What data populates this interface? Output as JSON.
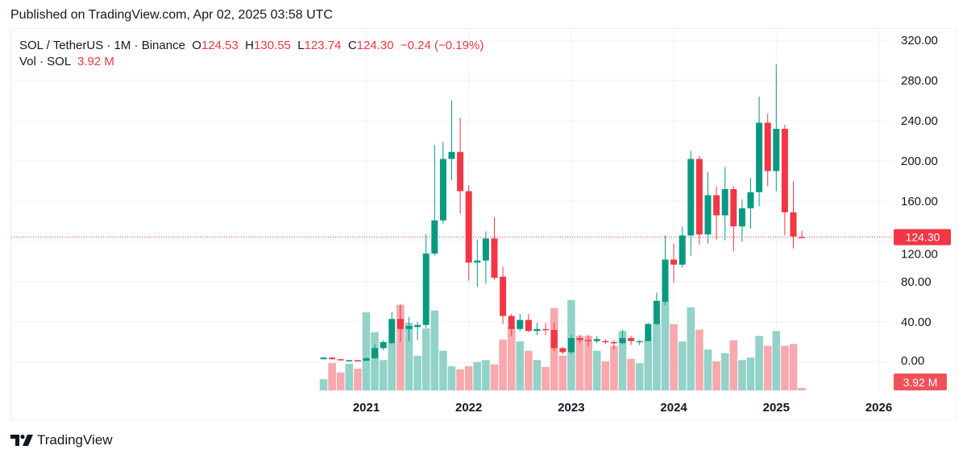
{
  "published": "Published on TradingView.com, Apr 02, 2025 03:58 UTC",
  "legend": {
    "symbol": "SOL / TetherUS · 1M · Binance",
    "o_label": "O",
    "o": "124.53",
    "h_label": "H",
    "h": "130.55",
    "l_label": "L",
    "l": "123.74",
    "c_label": "C",
    "c": "124.30",
    "change": "−0.24 (−0.19%)",
    "vol_label": "Vol · SOL",
    "vol": "3.92 M"
  },
  "price_label": "124.30",
  "volume_label": "3.92 M",
  "logo_text": "TradingView",
  "colors": {
    "up": "#089981",
    "down": "#f23645",
    "up_vol": "#92d2c8",
    "down_vol": "#f7a9ae",
    "grid": "#f0f2f5"
  },
  "chart_data": {
    "type": "candlestick",
    "title": "SOL / TetherUS · 1M · Binance",
    "interval": "1M",
    "start_month": "2020-08",
    "ylim": [
      0,
      320
    ],
    "yticks": [
      "0.00",
      "40.00",
      "80.00",
      "120.00",
      "160.00",
      "200.00",
      "240.00",
      "280.00",
      "320.00"
    ],
    "ytick_values": [
      0,
      40,
      80,
      120,
      160,
      200,
      240,
      280,
      320
    ],
    "xticks": [
      {
        "label": "2021",
        "index": 5
      },
      {
        "label": "2022",
        "index": 17
      },
      {
        "label": "2023",
        "index": 29
      },
      {
        "label": "2024",
        "index": 41
      },
      {
        "label": "2025",
        "index": 53
      },
      {
        "label": "2026",
        "index": 65
      }
    ],
    "grid": true,
    "last_price": 124.3,
    "ohlcv": [
      [
        3,
        5,
        2.9,
        4.6,
        18
      ],
      [
        4.6,
        5,
        2.6,
        3,
        44
      ],
      [
        3,
        3.3,
        1.8,
        1.9,
        29
      ],
      [
        1.9,
        2.3,
        1.5,
        2,
        43
      ],
      [
        2,
        2.2,
        1.4,
        1.5,
        35
      ],
      [
        1.5,
        4.5,
        1.4,
        4,
        126
      ],
      [
        4,
        18,
        3.5,
        14,
        94
      ],
      [
        14,
        22,
        12,
        20,
        49
      ],
      [
        19,
        50,
        18,
        43,
        77
      ],
      [
        43,
        58,
        20,
        33,
        138
      ],
      [
        33,
        45,
        21,
        36,
        109
      ],
      [
        35,
        40,
        22,
        37,
        56
      ],
      [
        37,
        127,
        34,
        108,
        100
      ],
      [
        108,
        216,
        106,
        141,
        129
      ],
      [
        141,
        219,
        138,
        202,
        64
      ],
      [
        202,
        260,
        181,
        209,
        39
      ],
      [
        209,
        243,
        148,
        170,
        34
      ],
      [
        170,
        176,
        81,
        99,
        39
      ],
      [
        99,
        122,
        75,
        101,
        46
      ],
      [
        101,
        130,
        78,
        123,
        49
      ],
      [
        123,
        144,
        82,
        84,
        42
      ],
      [
        85,
        95,
        38,
        46,
        82
      ],
      [
        46,
        48,
        26,
        33,
        103
      ],
      [
        33,
        48,
        31,
        42,
        79
      ],
      [
        42,
        48,
        30,
        31,
        64
      ],
      [
        31,
        39,
        27,
        33,
        49
      ],
      [
        33,
        39,
        27,
        32,
        38
      ],
      [
        32,
        39,
        11,
        14,
        133
      ],
      [
        14,
        15,
        8,
        10,
        56
      ],
      [
        10,
        27,
        8,
        24,
        146
      ],
      [
        24,
        27,
        19,
        22,
        88
      ],
      [
        22,
        27,
        16,
        21,
        88
      ],
      [
        21,
        26,
        19,
        23,
        64
      ],
      [
        21,
        23,
        18,
        20,
        47
      ],
      [
        20,
        22,
        13,
        19,
        72
      ],
      [
        19,
        32,
        18,
        24,
        96
      ],
      [
        24,
        26,
        17,
        21,
        51
      ],
      [
        20,
        22,
        17,
        21,
        44
      ],
      [
        21,
        39,
        21,
        38,
        81
      ],
      [
        38,
        69,
        37,
        61,
        108
      ],
      [
        60,
        126,
        57,
        102,
        143
      ],
      [
        102,
        118,
        79,
        97,
        107
      ],
      [
        97,
        135,
        94,
        126,
        79
      ],
      [
        126,
        210,
        106,
        202,
        134
      ],
      [
        202,
        205,
        117,
        127,
        98
      ],
      [
        127,
        189,
        118,
        166,
        66
      ],
      [
        166,
        175,
        122,
        146,
        47
      ],
      [
        146,
        194,
        121,
        172,
        60
      ],
      [
        172,
        175,
        110,
        135,
        81
      ],
      [
        135,
        162,
        120,
        153,
        49
      ],
      [
        153,
        183,
        133,
        169,
        53
      ],
      [
        169,
        264,
        155,
        238,
        88
      ],
      [
        238,
        247,
        175,
        190,
        72
      ],
      [
        190,
        296,
        170,
        232,
        96
      ],
      [
        232,
        236,
        126,
        149,
        72
      ],
      [
        149,
        180,
        113,
        125,
        75
      ],
      [
        124.53,
        130.55,
        123.74,
        124.3,
        3.92
      ]
    ]
  }
}
